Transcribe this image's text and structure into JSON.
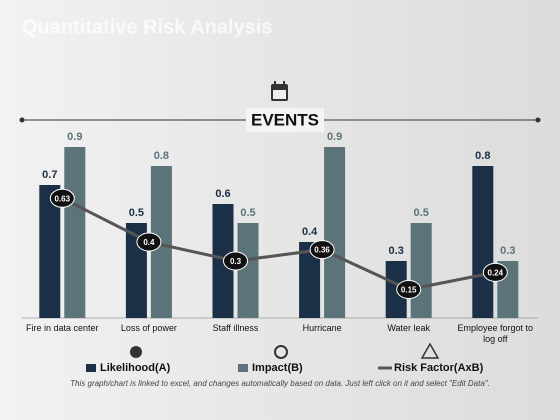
{
  "chart_data": {
    "type": "bar",
    "title": "Quantitative Risk Analysis",
    "subtitle": "EVENTS",
    "categories": [
      "Fire in data center",
      "Loss of power",
      "Staff illness",
      "Hurricane",
      "Water leak",
      "Employee forgot to log off"
    ],
    "series": [
      {
        "name": "Likelihood(A)",
        "type": "bar",
        "color": "#1b2f47",
        "values": [
          0.7,
          0.5,
          0.6,
          0.4,
          0.3,
          0.8
        ]
      },
      {
        "name": "Impact(B)",
        "type": "bar",
        "color": "#5b7379",
        "values": [
          0.9,
          0.8,
          0.5,
          0.9,
          0.5,
          0.3
        ]
      },
      {
        "name": "Risk Factor(AxB)",
        "type": "line",
        "color": "#555555",
        "values": [
          0.63,
          0.4,
          0.3,
          0.36,
          0.15,
          0.24
        ]
      }
    ],
    "footnote": "This graph/chart is linked to excel, and changes automatically  based on data. Just left click on it and select \"Edit Data\"."
  }
}
